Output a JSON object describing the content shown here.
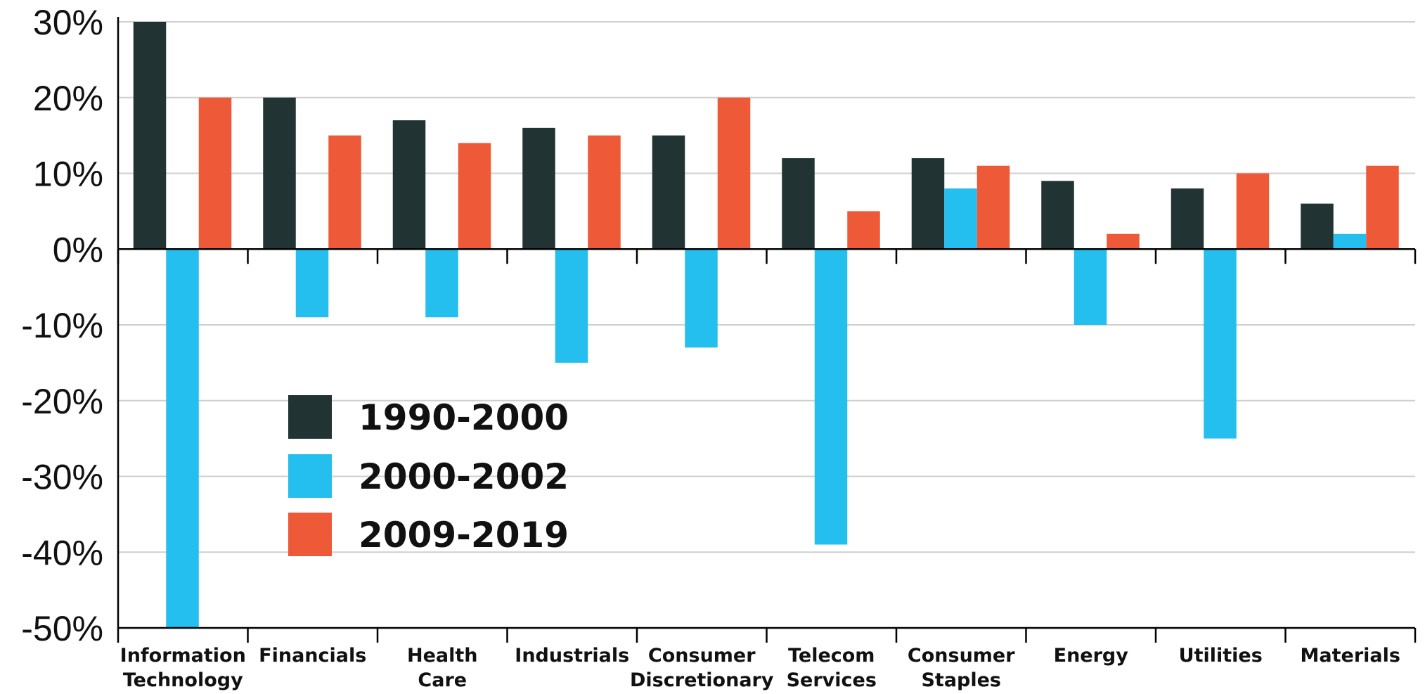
{
  "chart_data": {
    "type": "bar",
    "categories": [
      [
        "Information",
        "Technology"
      ],
      [
        "Financials"
      ],
      [
        "Health",
        "Care"
      ],
      [
        "Industrials"
      ],
      [
        "Consumer",
        "Discretionary"
      ],
      [
        "Telecom",
        "Services"
      ],
      [
        "Consumer",
        "Staples"
      ],
      [
        "Energy"
      ],
      [
        "Utilities"
      ],
      [
        "Materials"
      ]
    ],
    "series": [
      {
        "name": "1990-2000",
        "color": "#213333",
        "values": [
          30,
          20,
          17,
          16,
          15,
          12,
          12,
          9,
          8,
          6
        ]
      },
      {
        "name": "2000-2002",
        "color": "#24BFEF",
        "values": [
          -50,
          -9,
          -9,
          -15,
          -13,
          -39,
          8,
          -10,
          -25,
          2
        ]
      },
      {
        "name": "2009-2019",
        "color": "#EE5A37",
        "values": [
          20,
          15,
          14,
          15,
          20,
          5,
          11,
          2,
          10,
          11
        ]
      }
    ],
    "y_ticks": [
      "30%",
      "20%",
      "10%",
      "0%",
      "-10%",
      "-20%",
      "-30%",
      "-40%",
      "-50%"
    ],
    "y_tick_values": [
      30,
      20,
      10,
      0,
      -10,
      -20,
      -30,
      -40,
      -50
    ],
    "ylim": [
      -50,
      30
    ],
    "grid": true,
    "legend": {
      "placement": "center-left"
    }
  }
}
